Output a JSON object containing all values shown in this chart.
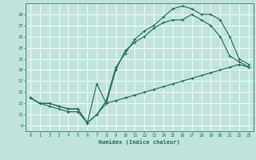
{
  "bg_color": "#c0e4dc",
  "grid_color": "#ffffff",
  "line_color": "#1a6b5a",
  "xlabel": "Humidex (Indice chaleur)",
  "xlim": [
    -0.5,
    23.5
  ],
  "ylim": [
    8.0,
    31.0
  ],
  "xticks": [
    0,
    1,
    2,
    3,
    4,
    5,
    6,
    7,
    8,
    9,
    10,
    11,
    12,
    13,
    14,
    15,
    16,
    17,
    18,
    19,
    20,
    21,
    22,
    23
  ],
  "yticks": [
    9,
    11,
    13,
    15,
    17,
    19,
    21,
    23,
    25,
    27,
    29
  ],
  "line1_x": [
    0,
    1,
    2,
    3,
    4,
    5,
    6,
    7,
    8,
    9,
    10,
    11,
    12,
    13,
    14,
    15,
    16,
    17,
    18,
    19,
    20,
    21,
    22,
    23
  ],
  "line1_y": [
    14.0,
    13.0,
    13.0,
    12.5,
    12.0,
    12.0,
    9.5,
    11.0,
    13.5,
    19.5,
    22.0,
    24.5,
    26.0,
    27.0,
    28.5,
    30.0,
    30.5,
    30.0,
    29.0,
    29.0,
    28.0,
    25.0,
    21.0,
    20.0
  ],
  "line2_x": [
    0,
    1,
    2,
    3,
    4,
    5,
    6,
    7,
    8,
    9,
    10,
    11,
    12,
    13,
    14,
    15,
    16,
    17,
    18,
    19,
    20,
    21,
    22,
    23
  ],
  "line2_y": [
    14.0,
    13.0,
    12.5,
    12.0,
    11.5,
    11.5,
    9.5,
    11.0,
    13.0,
    19.0,
    22.5,
    24.0,
    25.0,
    26.5,
    27.5,
    28.0,
    28.0,
    29.0,
    28.0,
    27.0,
    25.0,
    21.5,
    20.5,
    19.5
  ],
  "line3_x": [
    0,
    1,
    2,
    3,
    4,
    5,
    6,
    7,
    8,
    9,
    10,
    11,
    12,
    13,
    14,
    15,
    16,
    17,
    18,
    19,
    20,
    21,
    22,
    23
  ],
  "line3_y": [
    14.0,
    13.0,
    13.0,
    12.5,
    12.0,
    12.0,
    9.5,
    16.5,
    13.0,
    13.5,
    14.0,
    14.5,
    15.0,
    15.5,
    16.0,
    16.5,
    17.0,
    17.5,
    18.0,
    18.5,
    19.0,
    19.5,
    20.0,
    19.5
  ]
}
